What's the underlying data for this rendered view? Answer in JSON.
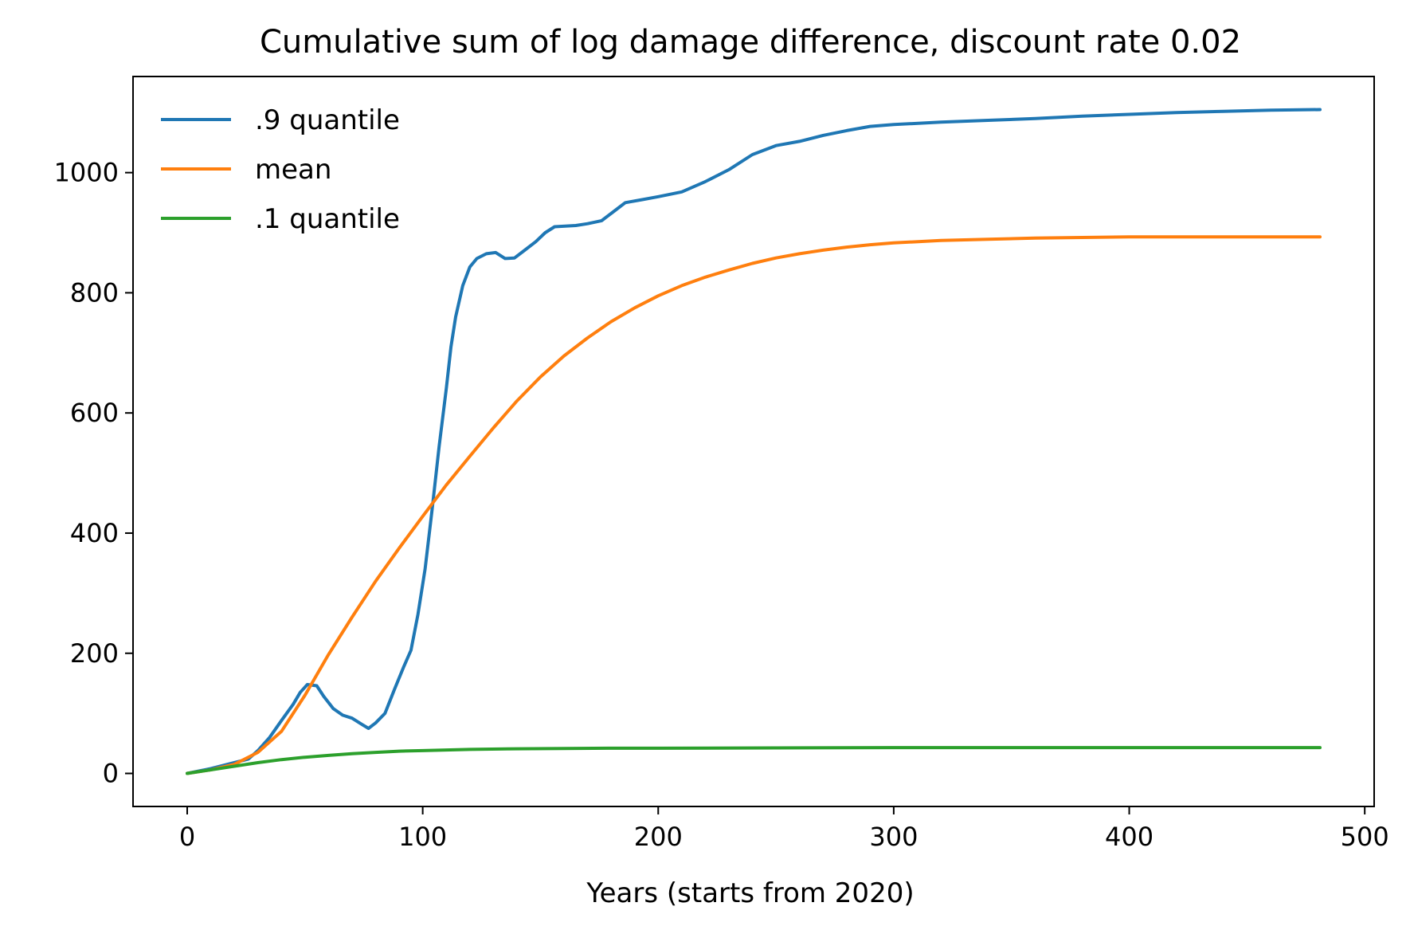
{
  "chart_data": {
    "type": "line",
    "title": "Cumulative sum of log damage difference, discount rate 0.02",
    "xlabel": "Years (starts from 2020)",
    "ylabel": "",
    "xlim": [
      -23,
      504
    ],
    "ylim": [
      -55,
      1160
    ],
    "xticks": [
      0,
      100,
      200,
      300,
      400,
      500
    ],
    "yticks": [
      0,
      200,
      400,
      600,
      800,
      1000
    ],
    "grid": false,
    "legend_position": "top-left",
    "series": [
      {
        "name": ".9 quantile",
        "color": "#1f77b4",
        "points": [
          [
            0,
            0
          ],
          [
            10,
            8
          ],
          [
            20,
            18
          ],
          [
            26,
            24
          ],
          [
            30,
            38
          ],
          [
            35,
            60
          ],
          [
            40,
            88
          ],
          [
            45,
            115
          ],
          [
            48,
            135
          ],
          [
            51,
            148
          ],
          [
            55,
            146
          ],
          [
            58,
            128
          ],
          [
            62,
            108
          ],
          [
            66,
            97
          ],
          [
            70,
            92
          ],
          [
            74,
            82
          ],
          [
            77,
            75
          ],
          [
            80,
            84
          ],
          [
            84,
            100
          ],
          [
            88,
            140
          ],
          [
            92,
            178
          ],
          [
            95,
            205
          ],
          [
            98,
            265
          ],
          [
            101,
            340
          ],
          [
            104,
            440
          ],
          [
            107,
            545
          ],
          [
            110,
            640
          ],
          [
            112,
            710
          ],
          [
            114,
            760
          ],
          [
            117,
            812
          ],
          [
            120,
            843
          ],
          [
            123,
            857
          ],
          [
            127,
            865
          ],
          [
            131,
            867
          ],
          [
            135,
            857
          ],
          [
            139,
            858
          ],
          [
            143,
            870
          ],
          [
            148,
            885
          ],
          [
            152,
            900
          ],
          [
            156,
            910
          ],
          [
            165,
            912
          ],
          [
            170,
            915
          ],
          [
            176,
            920
          ],
          [
            181,
            935
          ],
          [
            186,
            950
          ],
          [
            193,
            955
          ],
          [
            200,
            960
          ],
          [
            210,
            968
          ],
          [
            220,
            985
          ],
          [
            230,
            1005
          ],
          [
            240,
            1030
          ],
          [
            250,
            1045
          ],
          [
            260,
            1052
          ],
          [
            270,
            1062
          ],
          [
            280,
            1070
          ],
          [
            290,
            1077
          ],
          [
            300,
            1080
          ],
          [
            320,
            1084
          ],
          [
            340,
            1087
          ],
          [
            360,
            1090
          ],
          [
            380,
            1094
          ],
          [
            400,
            1097
          ],
          [
            420,
            1100
          ],
          [
            440,
            1102
          ],
          [
            460,
            1104
          ],
          [
            481,
            1105
          ]
        ]
      },
      {
        "name": "mean",
        "color": "#ff7f0e",
        "points": [
          [
            0,
            0
          ],
          [
            10,
            6
          ],
          [
            20,
            15
          ],
          [
            30,
            35
          ],
          [
            40,
            70
          ],
          [
            50,
            130
          ],
          [
            60,
            198
          ],
          [
            70,
            260
          ],
          [
            80,
            320
          ],
          [
            90,
            375
          ],
          [
            100,
            428
          ],
          [
            110,
            480
          ],
          [
            120,
            528
          ],
          [
            130,
            575
          ],
          [
            140,
            620
          ],
          [
            150,
            660
          ],
          [
            160,
            695
          ],
          [
            170,
            725
          ],
          [
            180,
            752
          ],
          [
            190,
            775
          ],
          [
            200,
            795
          ],
          [
            210,
            812
          ],
          [
            220,
            826
          ],
          [
            230,
            838
          ],
          [
            240,
            849
          ],
          [
            250,
            858
          ],
          [
            260,
            865
          ],
          [
            270,
            871
          ],
          [
            280,
            876
          ],
          [
            290,
            880
          ],
          [
            300,
            883
          ],
          [
            320,
            887
          ],
          [
            340,
            889
          ],
          [
            360,
            891
          ],
          [
            380,
            892
          ],
          [
            400,
            893
          ],
          [
            440,
            893
          ],
          [
            481,
            893
          ]
        ]
      },
      {
        "name": ".1 quantile",
        "color": "#2ca02c",
        "points": [
          [
            0,
            0
          ],
          [
            10,
            6
          ],
          [
            20,
            12
          ],
          [
            30,
            18
          ],
          [
            40,
            23
          ],
          [
            50,
            27
          ],
          [
            60,
            30
          ],
          [
            70,
            33
          ],
          [
            80,
            35
          ],
          [
            90,
            37
          ],
          [
            100,
            38
          ],
          [
            110,
            39
          ],
          [
            120,
            40
          ],
          [
            140,
            41
          ],
          [
            160,
            41.5
          ],
          [
            180,
            42
          ],
          [
            200,
            42
          ],
          [
            250,
            42.5
          ],
          [
            300,
            43
          ],
          [
            400,
            43
          ],
          [
            481,
            43
          ]
        ]
      }
    ]
  }
}
